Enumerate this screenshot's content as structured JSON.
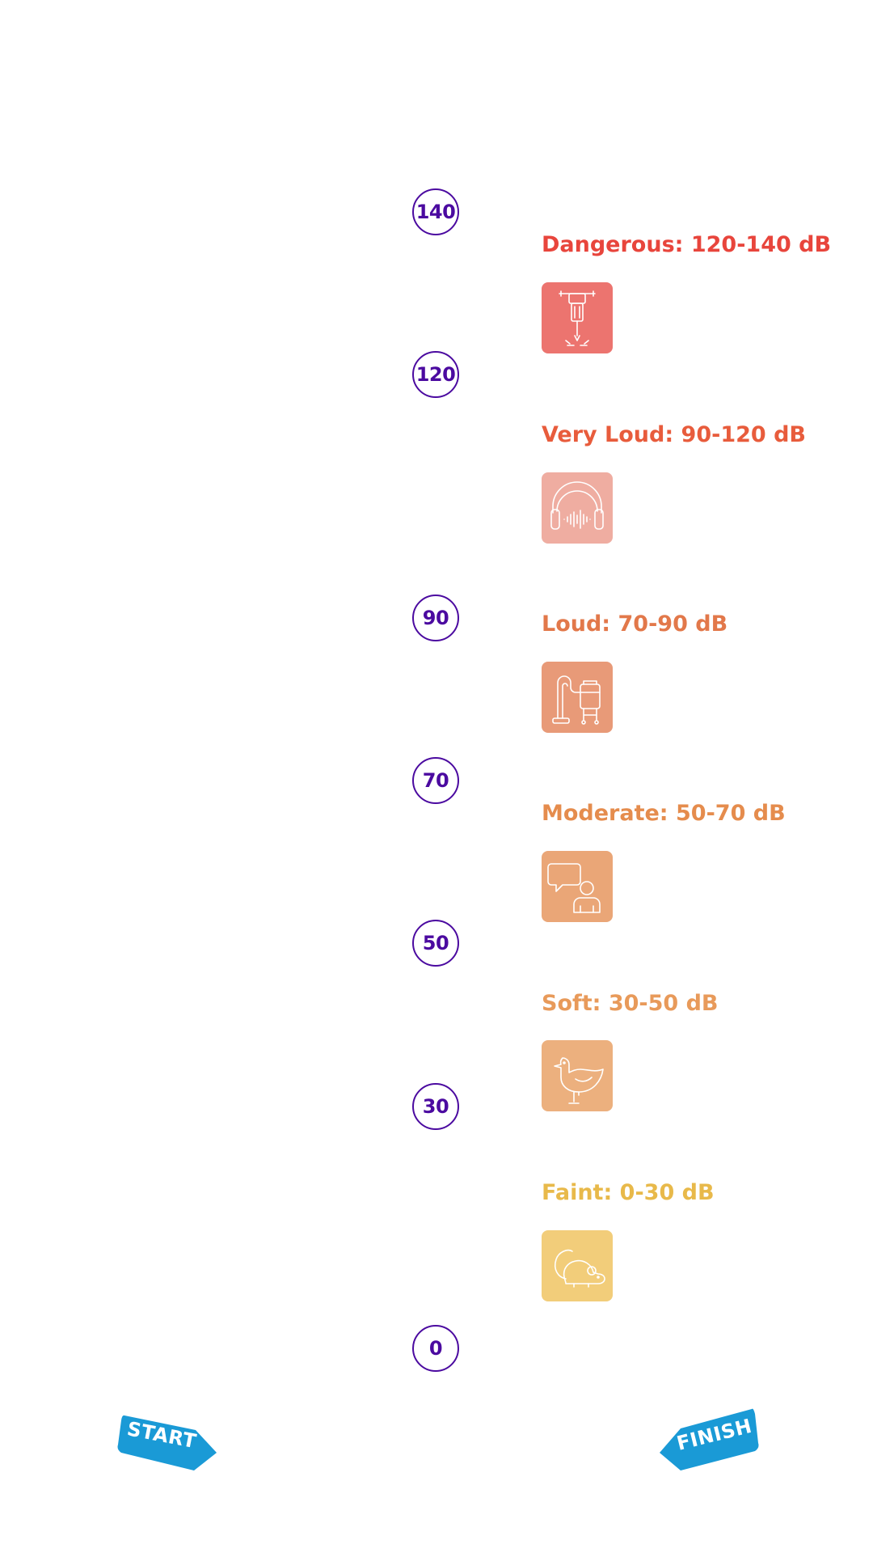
{
  "scale": {
    "markers": [
      "140",
      "120",
      "90",
      "70",
      "50",
      "30",
      "0"
    ],
    "marker_color": "#4b0aa0"
  },
  "levels": [
    {
      "label": "Dangerous: 120-140 dB",
      "color": "#e8453c",
      "icon_bg": "#ec746f",
      "icon": "jackhammer-icon"
    },
    {
      "label": "Very Loud: 90-120 dB",
      "color": "#e85c3c",
      "icon_bg": "#efada1",
      "icon": "headphones-icon"
    },
    {
      "label": "Loud: 70-90 dB",
      "color": "#e2784a",
      "icon_bg": "#e89a78",
      "icon": "vacuum-cleaner-icon"
    },
    {
      "label": "Moderate: 50-70 dB",
      "color": "#e58c4d",
      "icon_bg": "#eaa677",
      "icon": "conversation-icon"
    },
    {
      "label": "Soft: 30-50 dB",
      "color": "#e89a5a",
      "icon_bg": "#ecb07e",
      "icon": "bird-icon"
    },
    {
      "label": "Faint: 0-30 dB",
      "color": "#e8b94a",
      "icon_bg": "#f2cd7a",
      "icon": "mouse-icon"
    }
  ],
  "navigation": {
    "start_label": "START",
    "finish_label": "FINISH",
    "button_color": "#1a9ad6"
  }
}
